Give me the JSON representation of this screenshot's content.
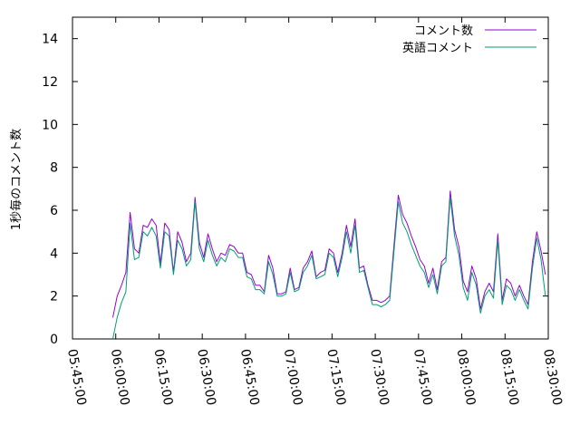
{
  "chart_data": {
    "type": "line",
    "title": "",
    "xlabel": "",
    "ylabel": "1秒毎のコメント数",
    "xlim": [
      "05:45:00",
      "08:30:00"
    ],
    "ylim": [
      0,
      15
    ],
    "grid": false,
    "legend_position": "top-right",
    "x_ticks": [
      "05:45:00",
      "06:00:00",
      "06:15:00",
      "06:30:00",
      "06:45:00",
      "07:00:00",
      "07:15:00",
      "07:30:00",
      "07:45:00",
      "08:00:00",
      "08:15:00",
      "08:30:00"
    ],
    "y_ticks": [
      0,
      2,
      4,
      6,
      8,
      10,
      12,
      14
    ],
    "x_start": "05:59:00",
    "x_step_seconds": 90,
    "series": [
      {
        "name": "コメント数",
        "color": "#9400d3",
        "values": [
          1.0,
          2.0,
          2.5,
          3.1,
          5.9,
          4.2,
          4.0,
          5.3,
          5.2,
          5.6,
          5.3,
          3.5,
          5.4,
          5.1,
          3.1,
          5.0,
          4.5,
          3.6,
          4.0,
          6.6,
          4.5,
          3.8,
          4.9,
          4.2,
          3.6,
          4.0,
          3.9,
          4.4,
          4.3,
          4.0,
          4.0,
          3.1,
          3.0,
          2.5,
          2.5,
          2.2,
          3.9,
          3.3,
          2.1,
          2.1,
          2.2,
          3.3,
          2.3,
          2.4,
          3.3,
          3.6,
          4.1,
          2.9,
          3.1,
          3.2,
          4.2,
          4.0,
          3.1,
          4.0,
          5.3,
          4.3,
          5.6,
          3.3,
          3.4,
          2.5,
          1.8,
          1.8,
          1.7,
          1.8,
          2.0,
          4.4,
          6.7,
          5.8,
          5.4,
          4.8,
          4.3,
          3.7,
          3.4,
          2.6,
          3.3,
          2.3,
          3.6,
          3.8,
          6.9,
          5.1,
          4.3,
          2.7,
          2.2,
          3.4,
          2.8,
          1.4,
          2.2,
          2.6,
          2.2,
          4.9,
          1.8,
          2.8,
          2.6,
          2.0,
          2.5,
          2.0,
          1.6,
          3.6,
          5.0,
          4.1,
          3.0
        ]
      },
      {
        "name": "英語コメント",
        "color": "#009e73",
        "values": [
          0.0,
          1.0,
          1.7,
          2.2,
          5.4,
          3.7,
          3.8,
          5.0,
          4.8,
          5.2,
          4.8,
          3.3,
          5.0,
          4.8,
          3.0,
          4.6,
          4.2,
          3.4,
          3.7,
          6.4,
          4.2,
          3.6,
          4.6,
          3.9,
          3.4,
          3.8,
          3.6,
          4.2,
          4.1,
          3.8,
          3.8,
          2.9,
          2.8,
          2.3,
          2.3,
          2.1,
          3.6,
          3.0,
          2.0,
          2.0,
          2.1,
          3.1,
          2.2,
          2.3,
          3.1,
          3.4,
          3.9,
          2.8,
          2.9,
          3.0,
          4.0,
          3.8,
          2.9,
          3.8,
          5.0,
          4.0,
          5.3,
          3.1,
          3.2,
          2.4,
          1.6,
          1.6,
          1.5,
          1.6,
          1.8,
          4.1,
          6.4,
          5.4,
          5.0,
          4.4,
          3.9,
          3.4,
          3.1,
          2.4,
          3.0,
          2.1,
          3.4,
          3.6,
          6.6,
          4.8,
          3.9,
          2.4,
          1.8,
          3.1,
          2.5,
          1.2,
          2.0,
          2.3,
          1.9,
          4.6,
          1.6,
          2.5,
          2.3,
          1.8,
          2.3,
          1.8,
          1.4,
          3.3,
          4.7,
          3.7,
          2.0
        ]
      }
    ]
  }
}
